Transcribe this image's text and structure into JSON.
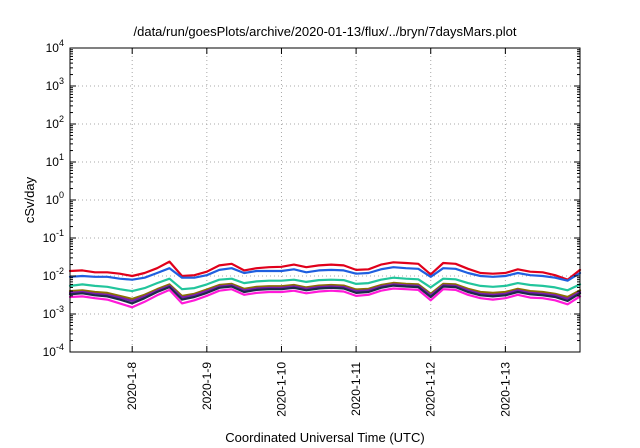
{
  "chart_data": {
    "type": "line",
    "title": "/data/run/goesPlots/archive/2020-01-13/flux/../bryn/7daysMars.plot",
    "xlabel": "Coordinated Universal Time (UTC)",
    "ylabel": "cSv/day",
    "yscale": "log",
    "ylim": [
      0.0001,
      10000
    ],
    "y_ticks": [
      {
        "base": "10",
        "exp": "-4"
      },
      {
        "base": "10",
        "exp": "-3"
      },
      {
        "base": "10",
        "exp": "-2"
      },
      {
        "base": "10",
        "exp": "-1"
      },
      {
        "base": "10",
        "exp": "0"
      },
      {
        "base": "10",
        "exp": "1"
      },
      {
        "base": "10",
        "exp": "2"
      },
      {
        "base": "10",
        "exp": "3"
      },
      {
        "base": "10",
        "exp": "4"
      }
    ],
    "xlim": [
      "2020-01-07T04:00",
      "2020-01-14T00:00"
    ],
    "x_ticks": [
      "2020-1-8",
      "2020-1-9",
      "2020-1-10",
      "2020-1-11",
      "2020-1-12",
      "2020-1-13"
    ],
    "grid": true,
    "x": [
      "2020-01-07T04:00",
      "2020-01-07T08:00",
      "2020-01-07T12:00",
      "2020-01-07T16:00",
      "2020-01-07T20:00",
      "2020-01-08T00:00",
      "2020-01-08T04:00",
      "2020-01-08T08:00",
      "2020-01-08T12:00",
      "2020-01-08T16:00",
      "2020-01-08T20:00",
      "2020-01-09T00:00",
      "2020-01-09T04:00",
      "2020-01-09T08:00",
      "2020-01-09T12:00",
      "2020-01-09T16:00",
      "2020-01-09T20:00",
      "2020-01-10T00:00",
      "2020-01-10T04:00",
      "2020-01-10T08:00",
      "2020-01-10T12:00",
      "2020-01-10T16:00",
      "2020-01-10T20:00",
      "2020-01-11T00:00",
      "2020-01-11T04:00",
      "2020-01-11T08:00",
      "2020-01-11T12:00",
      "2020-01-11T16:00",
      "2020-01-11T20:00",
      "2020-01-12T00:00",
      "2020-01-12T04:00",
      "2020-01-12T08:00",
      "2020-01-12T12:00",
      "2020-01-12T16:00",
      "2020-01-12T20:00",
      "2020-01-13T00:00",
      "2020-01-13T04:00",
      "2020-01-13T08:00",
      "2020-01-13T12:00",
      "2020-01-13T16:00",
      "2020-01-13T20:00",
      "2020-01-14T00:00"
    ],
    "series": [
      {
        "color": "#e0001b",
        "values": [
          0.0135,
          0.014,
          0.0125,
          0.0125,
          0.0115,
          0.01,
          0.012,
          0.016,
          0.024,
          0.01,
          0.0105,
          0.013,
          0.019,
          0.021,
          0.014,
          0.016,
          0.017,
          0.0175,
          0.02,
          0.017,
          0.019,
          0.02,
          0.019,
          0.0145,
          0.015,
          0.02,
          0.023,
          0.022,
          0.021,
          0.011,
          0.022,
          0.021,
          0.0155,
          0.012,
          0.0115,
          0.012,
          0.015,
          0.013,
          0.0125,
          0.0105,
          0.008,
          0.0145
        ]
      },
      {
        "color": "#1f5fe0",
        "values": [
          0.0095,
          0.01,
          0.0095,
          0.0095,
          0.0085,
          0.008,
          0.009,
          0.012,
          0.016,
          0.009,
          0.009,
          0.0105,
          0.0145,
          0.016,
          0.012,
          0.0135,
          0.0135,
          0.0135,
          0.015,
          0.0125,
          0.014,
          0.0145,
          0.014,
          0.0115,
          0.012,
          0.015,
          0.017,
          0.016,
          0.0155,
          0.0095,
          0.016,
          0.0155,
          0.012,
          0.01,
          0.0095,
          0.01,
          0.012,
          0.0105,
          0.01,
          0.009,
          0.0075,
          0.012
        ]
      },
      {
        "color": "#22c59c",
        "values": [
          0.0055,
          0.006,
          0.0055,
          0.0052,
          0.0045,
          0.004,
          0.0048,
          0.0065,
          0.0085,
          0.0045,
          0.0048,
          0.006,
          0.008,
          0.0085,
          0.0065,
          0.0072,
          0.0075,
          0.0075,
          0.008,
          0.007,
          0.0078,
          0.008,
          0.0078,
          0.0062,
          0.0065,
          0.008,
          0.009,
          0.0085,
          0.0082,
          0.005,
          0.0085,
          0.0082,
          0.0065,
          0.0055,
          0.0052,
          0.0055,
          0.0065,
          0.0058,
          0.0055,
          0.005,
          0.0042,
          0.006
        ]
      },
      {
        "color": "#8a7000",
        "values": [
          0.004,
          0.0042,
          0.0038,
          0.0036,
          0.003,
          0.0025,
          0.0032,
          0.0045,
          0.006,
          0.003,
          0.0034,
          0.0044,
          0.0058,
          0.0062,
          0.0046,
          0.0052,
          0.0054,
          0.0054,
          0.0058,
          0.005,
          0.0056,
          0.0058,
          0.0056,
          0.0044,
          0.0046,
          0.0058,
          0.0066,
          0.0062,
          0.006,
          0.0034,
          0.0062,
          0.006,
          0.0046,
          0.0038,
          0.0036,
          0.0038,
          0.0046,
          0.004,
          0.0038,
          0.0034,
          0.0028,
          0.0042
        ]
      },
      {
        "color": "#7a1bb0",
        "values": [
          0.0036,
          0.0038,
          0.0034,
          0.0032,
          0.0027,
          0.0022,
          0.0029,
          0.0041,
          0.0055,
          0.0027,
          0.0031,
          0.004,
          0.0053,
          0.0057,
          0.0042,
          0.0047,
          0.0049,
          0.0049,
          0.0053,
          0.0046,
          0.0051,
          0.0053,
          0.0051,
          0.004,
          0.0042,
          0.0053,
          0.006,
          0.0057,
          0.0055,
          0.0031,
          0.0057,
          0.0055,
          0.0042,
          0.0034,
          0.0032,
          0.0034,
          0.0042,
          0.0036,
          0.0034,
          0.0031,
          0.0025,
          0.0038
        ]
      },
      {
        "color": "#1e2a4a",
        "values": [
          0.0033,
          0.0035,
          0.0031,
          0.0029,
          0.0024,
          0.0019,
          0.0026,
          0.0038,
          0.0051,
          0.0024,
          0.0028,
          0.0036,
          0.0049,
          0.0053,
          0.0038,
          0.0043,
          0.0045,
          0.0045,
          0.0049,
          0.0042,
          0.0047,
          0.0049,
          0.0047,
          0.0036,
          0.0038,
          0.0049,
          0.0056,
          0.0053,
          0.0051,
          0.0028,
          0.0053,
          0.0051,
          0.0038,
          0.0031,
          0.0029,
          0.0031,
          0.0038,
          0.0033,
          0.0031,
          0.0028,
          0.0022,
          0.0035
        ]
      },
      {
        "color": "#ff1ad9",
        "values": [
          0.0028,
          0.0029,
          0.0026,
          0.0024,
          0.0019,
          0.0015,
          0.0021,
          0.0031,
          0.0043,
          0.0019,
          0.0023,
          0.003,
          0.0041,
          0.0045,
          0.0032,
          0.0036,
          0.0038,
          0.0038,
          0.0041,
          0.0035,
          0.0039,
          0.0041,
          0.0039,
          0.003,
          0.0032,
          0.0041,
          0.0047,
          0.0045,
          0.0043,
          0.0023,
          0.0045,
          0.0043,
          0.0032,
          0.0026,
          0.0024,
          0.0026,
          0.0032,
          0.0027,
          0.0026,
          0.0023,
          0.0018,
          0.0029
        ]
      }
    ]
  }
}
